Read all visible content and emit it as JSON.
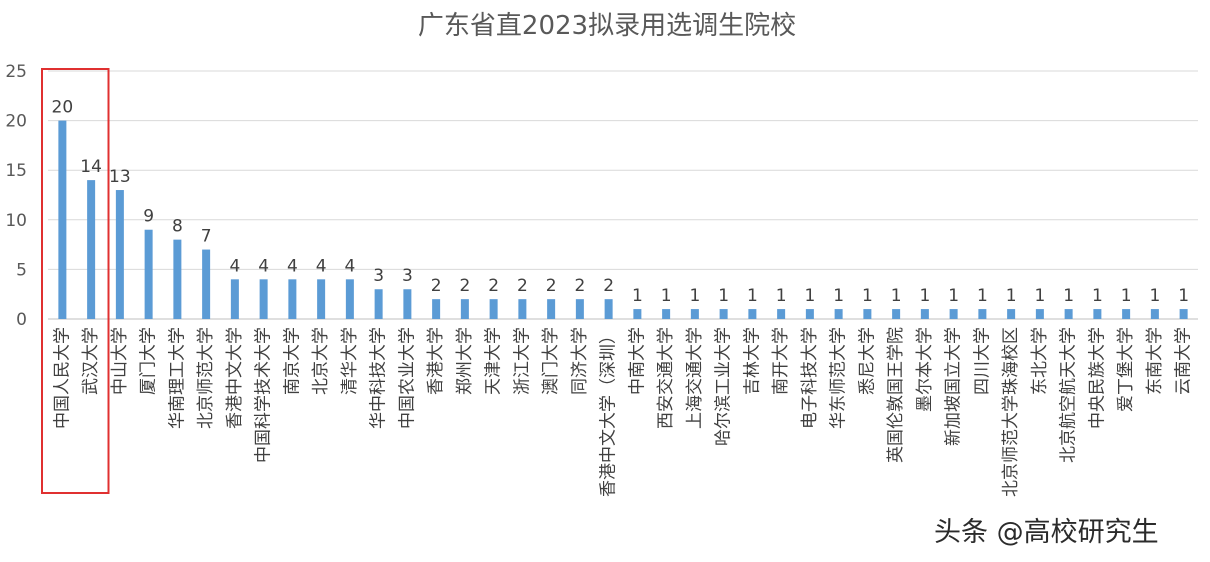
{
  "chart_data": {
    "type": "bar",
    "title": "广东省直2023拟录用选调生院校",
    "xlabel": "",
    "ylabel": "",
    "ylim": [
      0,
      25
    ],
    "yticks": [
      0,
      5,
      10,
      15,
      20,
      25
    ],
    "grid": true,
    "legend": "none",
    "bar_color": "#5b9bd5",
    "highlight_color": "#e03030",
    "highlighted_categories": [
      "中国人民大学",
      "武汉大学"
    ],
    "categories": [
      "中国人民大学",
      "武汉大学",
      "中山大学",
      "厦门大学",
      "华南理工大学",
      "北京师范大学",
      "香港中文大学",
      "中国科学技术大学",
      "南京大学",
      "北京大学",
      "清华大学",
      "华中科技大学",
      "中国农业大学",
      "香港大学",
      "郑州大学",
      "天津大学",
      "浙江大学",
      "澳门大学",
      "同济大学",
      "香港中文大学（深圳）",
      "中南大学",
      "西安交通大学",
      "上海交通大学",
      "哈尔滨工业大学",
      "吉林大学",
      "南开大学",
      "电子科技大学",
      "华东师范大学",
      "悉尼大学",
      "英国伦敦国王学院",
      "墨尔本大学",
      "新加坡国立大学",
      "四川大学",
      "北京师范大学珠海校区",
      "东北大学",
      "北京航空航天大学",
      "中央民族大学",
      "爱丁堡大学",
      "东南大学",
      "云南大学"
    ],
    "values": [
      20,
      14,
      13,
      9,
      8,
      7,
      4,
      4,
      4,
      4,
      4,
      3,
      3,
      2,
      2,
      2,
      2,
      2,
      2,
      2,
      1,
      1,
      1,
      1,
      1,
      1,
      1,
      1,
      1,
      1,
      1,
      1,
      1,
      1,
      1,
      1,
      1,
      1,
      1,
      1
    ]
  },
  "watermark": "头条 @高校研究生"
}
